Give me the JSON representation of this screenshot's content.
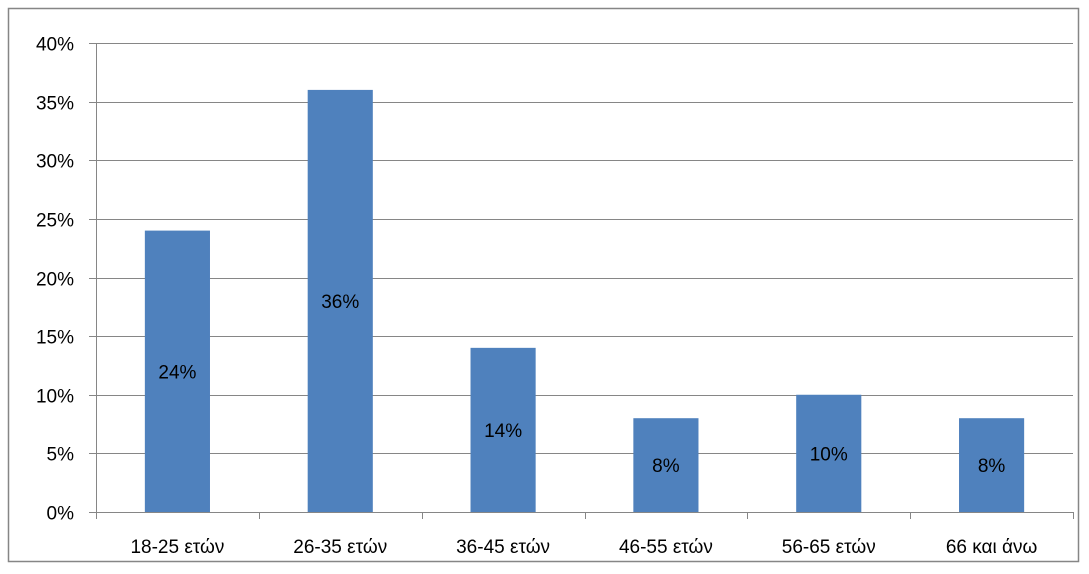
{
  "chart_data": {
    "type": "bar",
    "categories": [
      "18-25 ετών",
      "26-35 ετών",
      "36-45 ετών",
      "46-55 ετών",
      "56-65 ετών",
      "66 και άνω"
    ],
    "values": [
      24,
      36,
      14,
      8,
      10,
      8
    ],
    "data_labels": [
      "24%",
      "36%",
      "14%",
      "8%",
      "10%",
      "8%"
    ],
    "title": "",
    "xlabel": "",
    "ylabel": "",
    "ylim": [
      0,
      40
    ],
    "yticks": [
      0,
      5,
      10,
      15,
      20,
      25,
      30,
      35,
      40
    ],
    "ytick_labels": [
      "0%",
      "5%",
      "10%",
      "15%",
      "20%",
      "25%",
      "30%",
      "35%",
      "40%"
    ],
    "grid": true,
    "legend": "none",
    "colors": {
      "bar": "#4F81BD",
      "grid": "#868686",
      "axis": "#868686",
      "border": "#868686"
    }
  }
}
